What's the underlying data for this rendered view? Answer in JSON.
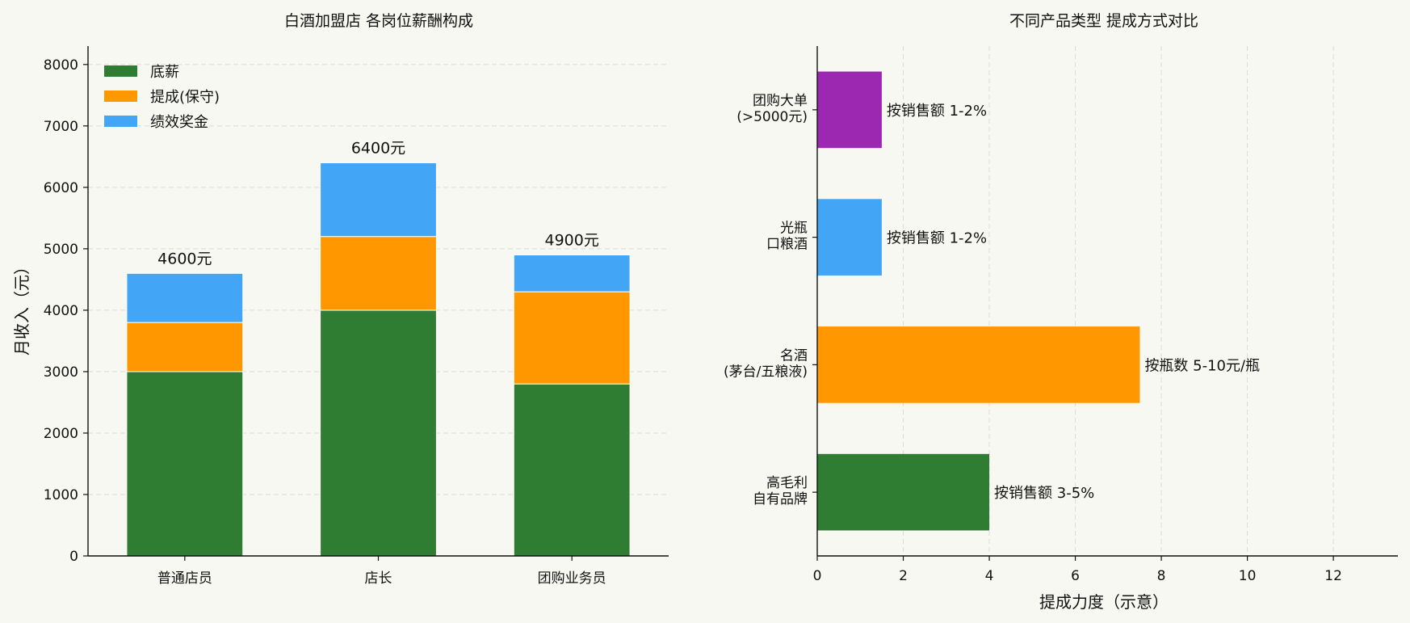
{
  "chart_data": [
    {
      "type": "bar",
      "stacked": true,
      "title": "白酒加盟店 各岗位薪酬构成",
      "ylabel": "月收入（元）",
      "categories": [
        "普通店员",
        "店长",
        "团购业务员"
      ],
      "series": [
        {
          "name": "底薪",
          "values": [
            3000,
            4000,
            2800
          ],
          "color": "#2e7d32"
        },
        {
          "name": "提成(保守)",
          "values": [
            800,
            1200,
            1500
          ],
          "color": "#ff9800"
        },
        {
          "name": "绩效奖金",
          "values": [
            800,
            1200,
            600
          ],
          "color": "#42a5f5"
        }
      ],
      "total_labels": [
        "4600元",
        "6400元",
        "4900元"
      ],
      "ylim": [
        0,
        8300
      ],
      "yticks": [
        0,
        1000,
        2000,
        3000,
        4000,
        5000,
        6000,
        7000,
        8000
      ],
      "grid": "y",
      "legend": "top-left"
    },
    {
      "type": "bar",
      "orientation": "horizontal",
      "title": "不同产品类型 提成方式对比",
      "xlabel": "提成力度（示意）",
      "categories": [
        [
          "高毛利",
          "自有品牌"
        ],
        [
          "名酒",
          "(茅台/五粮液)"
        ],
        [
          "光瓶",
          "口粮酒"
        ],
        [
          "团购大单",
          "(>5000元)"
        ]
      ],
      "values": [
        4,
        7.5,
        1.5,
        1.5
      ],
      "colors": [
        "#2e7d32",
        "#ff9800",
        "#42a5f5",
        "#9c27b0"
      ],
      "bar_labels": [
        "按销售额 3-5%",
        "按瓶数 5-10元/瓶",
        "按销售额 1-2%",
        "按销售额 1-2%"
      ],
      "xlim": [
        0,
        13.5
      ],
      "xticks": [
        0,
        2,
        4,
        6,
        8,
        10,
        12
      ],
      "grid": "x"
    }
  ]
}
